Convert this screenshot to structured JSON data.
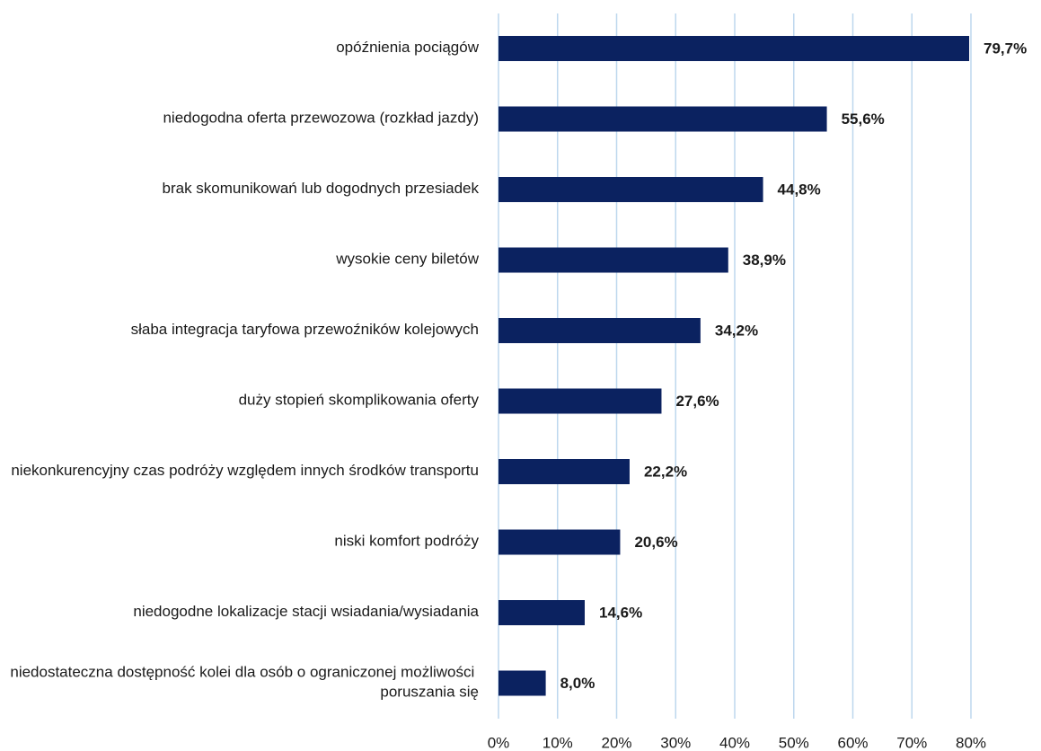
{
  "chart_data": {
    "type": "bar",
    "orientation": "horizontal",
    "categories": [
      "opóźnienia pociągów",
      "niedogodna oferta przewozowa (rozkład jazdy)",
      "brak skomunikowań lub dogodnych przesiadek",
      "wysokie ceny biletów",
      "słaba integracja taryfowa przewoźników kolejowych",
      "duży stopień skomplikowania oferty",
      "niekonkurencyjny czas podróży względem innych środków transportu",
      "niski komfort podróży",
      "niedogodne lokalizacje stacji wsiadania/wysiadania",
      "niedostateczna dostępność kolei dla osób o ograniczonej możliwości poruszania się"
    ],
    "values": [
      79.7,
      55.6,
      44.8,
      38.9,
      34.2,
      27.6,
      22.2,
      20.6,
      14.6,
      8.0
    ],
    "value_labels": [
      "79,7%",
      "55,6%",
      "44,8%",
      "38,9%",
      "34,2%",
      "27,6%",
      "22,2%",
      "20,6%",
      "14,6%",
      "8,0%"
    ],
    "color": "#0b2260",
    "xlim": [
      0,
      80
    ],
    "xticks": [
      {
        "value": 0,
        "label": "0%"
      },
      {
        "value": 10,
        "label": "10%"
      },
      {
        "value": 20,
        "label": "20%"
      },
      {
        "value": 30,
        "label": "30%"
      },
      {
        "value": 40,
        "label": "40%"
      },
      {
        "value": 50,
        "label": "50%"
      },
      {
        "value": 60,
        "label": "60%"
      },
      {
        "value": 70,
        "label": "70%"
      },
      {
        "value": 80,
        "label": "80%"
      }
    ],
    "grid": true
  }
}
